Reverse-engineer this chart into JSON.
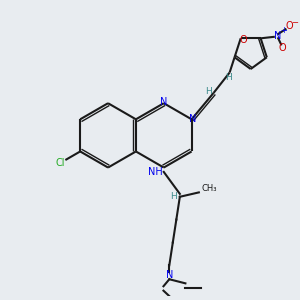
{
  "background_color": "#e8ecf0",
  "bond_color": "#1a1a1a",
  "nitrogen_color": "#0000ee",
  "oxygen_color": "#cc0000",
  "chlorine_color": "#22aa22",
  "hydrogen_color": "#3a8a8a",
  "figsize": [
    3.0,
    3.0
  ],
  "dpi": 100,
  "xlim": [
    0,
    10
  ],
  "ylim": [
    0,
    10
  ]
}
